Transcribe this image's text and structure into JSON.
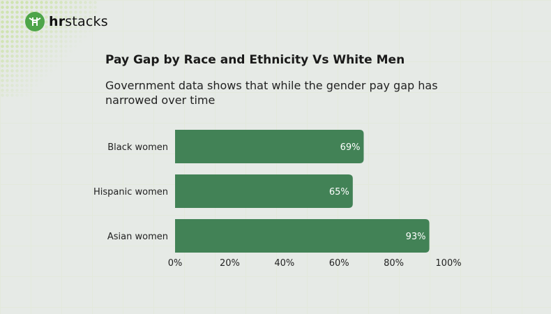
{
  "brand": {
    "name_bold": "hr",
    "name_rest": "stacks",
    "color": "#4ea54a"
  },
  "chart_data": {
    "type": "bar",
    "orientation": "horizontal",
    "title": "Pay Gap by Race and Ethnicity Vs White Men",
    "subtitle": "Government data shows that while the gender pay gap has narrowed over time",
    "categories": [
      "Black women",
      "Hispanic women",
      "Asian women"
    ],
    "values": [
      69,
      65,
      93
    ],
    "data_labels": [
      "69%",
      "65%",
      "93%"
    ],
    "xlim": [
      0,
      100
    ],
    "xticks": [
      "0%",
      "20%",
      "40%",
      "60%",
      "80%",
      "100%"
    ],
    "bar_color": "#428256",
    "grid": false
  }
}
